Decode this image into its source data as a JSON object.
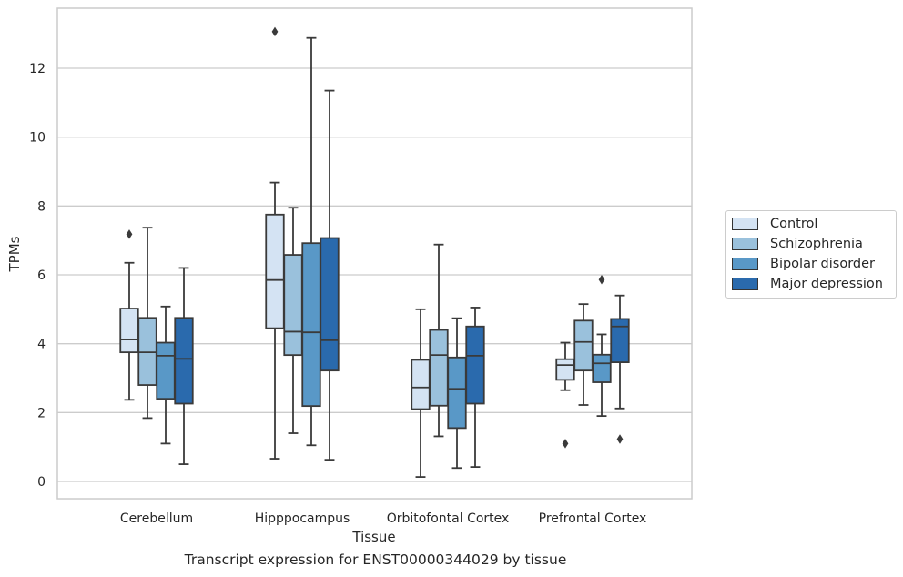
{
  "chart_data": {
    "type": "box",
    "title": "",
    "caption": "Transcript expression for ENST00000344029 by tissue",
    "xlabel": "Tissue",
    "ylabel": "TPMs",
    "ylim": [
      -0.5,
      13.8
    ],
    "yticks": [
      0,
      2,
      4,
      6,
      8,
      10,
      12
    ],
    "grid": "horizontal",
    "legend_position": "right",
    "categories": [
      "Cerebellum",
      "Hipppocampus",
      "Orbitofontal Cortex",
      "Prefrontal Cortex"
    ],
    "series": [
      {
        "name": "Control",
        "color": "#d4e3f3",
        "boxes": [
          {
            "whisker_low": 2.37,
            "q1": 3.75,
            "median": 4.12,
            "q3": 5.02,
            "whisker_high": 6.35,
            "outliers": [
              7.18
            ]
          },
          {
            "whisker_low": 0.66,
            "q1": 4.45,
            "median": 5.85,
            "q3": 7.75,
            "whisker_high": 8.68,
            "outliers": [
              13.06
            ]
          },
          {
            "whisker_low": 0.13,
            "q1": 2.1,
            "median": 2.73,
            "q3": 3.53,
            "whisker_high": 5.0,
            "outliers": []
          },
          {
            "whisker_low": 2.65,
            "q1": 2.95,
            "median": 3.38,
            "q3": 3.55,
            "whisker_high": 4.03,
            "outliers": [
              1.1
            ]
          }
        ]
      },
      {
        "name": "Schizophrenia",
        "color": "#9ac1dc",
        "boxes": [
          {
            "whisker_low": 1.84,
            "q1": 2.8,
            "median": 3.75,
            "q3": 4.75,
            "whisker_high": 7.37,
            "outliers": []
          },
          {
            "whisker_low": 1.4,
            "q1": 3.67,
            "median": 4.35,
            "q3": 6.58,
            "whisker_high": 7.95,
            "outliers": []
          },
          {
            "whisker_low": 1.31,
            "q1": 2.2,
            "median": 3.67,
            "q3": 4.4,
            "whisker_high": 6.88,
            "outliers": []
          },
          {
            "whisker_low": 2.22,
            "q1": 3.22,
            "median": 4.05,
            "q3": 4.67,
            "whisker_high": 5.15,
            "outliers": []
          }
        ]
      },
      {
        "name": "Bipolar disorder",
        "color": "#5998c7",
        "boxes": [
          {
            "whisker_low": 1.1,
            "q1": 2.4,
            "median": 3.65,
            "q3": 4.03,
            "whisker_high": 5.08,
            "outliers": []
          },
          {
            "whisker_low": 1.05,
            "q1": 2.19,
            "median": 4.33,
            "q3": 6.92,
            "whisker_high": 12.88,
            "outliers": []
          },
          {
            "whisker_low": 0.39,
            "q1": 1.55,
            "median": 2.69,
            "q3": 3.6,
            "whisker_high": 4.74,
            "outliers": []
          },
          {
            "whisker_low": 1.9,
            "q1": 2.88,
            "median": 3.43,
            "q3": 3.68,
            "whisker_high": 4.27,
            "outliers": [
              5.86
            ]
          }
        ]
      },
      {
        "name": "Major depression",
        "color": "#2a6aad",
        "boxes": [
          {
            "whisker_low": 0.5,
            "q1": 2.26,
            "median": 3.56,
            "q3": 4.75,
            "whisker_high": 6.2,
            "outliers": []
          },
          {
            "whisker_low": 0.63,
            "q1": 3.22,
            "median": 4.1,
            "q3": 7.07,
            "whisker_high": 11.35,
            "outliers": []
          },
          {
            "whisker_low": 0.42,
            "q1": 2.26,
            "median": 3.65,
            "q3": 4.5,
            "whisker_high": 5.05,
            "outliers": []
          },
          {
            "whisker_low": 2.12,
            "q1": 3.46,
            "median": 4.5,
            "q3": 4.72,
            "whisker_high": 5.4,
            "outliers": [
              1.23
            ]
          }
        ]
      }
    ]
  }
}
